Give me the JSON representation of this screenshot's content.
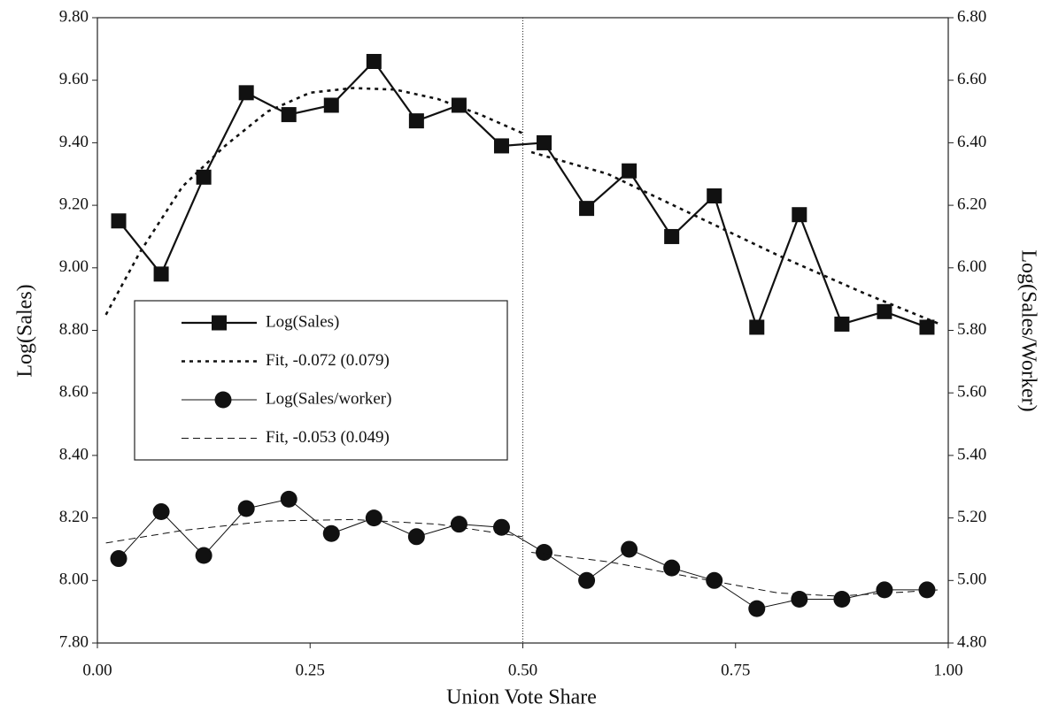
{
  "chart_data": {
    "type": "line",
    "x_label": "Union Vote Share",
    "y_label": "Log(Sales)",
    "y2_label": "Log(Sales/Worker)",
    "xlim": [
      0,
      1
    ],
    "ylim": [
      7.8,
      9.8
    ],
    "y2lim": [
      4.8,
      6.8
    ],
    "xticks": [
      {
        "value": 0,
        "label": "0.00"
      },
      {
        "value": 0.25,
        "label": "0.25"
      },
      {
        "value": 0.5,
        "label": "0.50"
      },
      {
        "value": 0.75,
        "label": "0.75"
      },
      {
        "value": 1,
        "label": "1.00"
      }
    ],
    "yticks": [
      {
        "value": 7.8,
        "label": "7.80"
      },
      {
        "value": 8,
        "label": "8.00"
      },
      {
        "value": 8.2,
        "label": "8.20"
      },
      {
        "value": 8.4,
        "label": "8.40"
      },
      {
        "value": 8.6,
        "label": "8.60"
      },
      {
        "value": 8.8,
        "label": "8.80"
      },
      {
        "value": 9,
        "label": "9.00"
      },
      {
        "value": 9.2,
        "label": "9.20"
      },
      {
        "value": 9.4,
        "label": "9.40"
      },
      {
        "value": 9.6,
        "label": "9.60"
      },
      {
        "value": 9.8,
        "label": "9.80"
      }
    ],
    "y2ticks": [
      {
        "value": 4.8,
        "label": "4.80"
      },
      {
        "value": 5,
        "label": "5.00"
      },
      {
        "value": 5.2,
        "label": "5.20"
      },
      {
        "value": 5.4,
        "label": "5.40"
      },
      {
        "value": 5.6,
        "label": "5.60"
      },
      {
        "value": 5.8,
        "label": "5.80"
      },
      {
        "value": 6,
        "label": "6.00"
      },
      {
        "value": 6.2,
        "label": "6.20"
      },
      {
        "value": 6.4,
        "label": "6.40"
      },
      {
        "value": 6.6,
        "label": "6.60"
      },
      {
        "value": 6.8,
        "label": "6.80"
      }
    ],
    "vline": 0.5,
    "series": [
      {
        "name": "Log(Sales)",
        "color": "#111111",
        "marker": "square",
        "width": 2.2,
        "dash": "none",
        "x": [
          0.025,
          0.075,
          0.125,
          0.175,
          0.225,
          0.275,
          0.325,
          0.375,
          0.425,
          0.475,
          0.525,
          0.575,
          0.625,
          0.675,
          0.725,
          0.775,
          0.825,
          0.875,
          0.925,
          0.975
        ],
        "values": [
          9.15,
          8.98,
          9.29,
          9.56,
          9.49,
          9.52,
          9.66,
          9.47,
          9.52,
          9.39,
          9.4,
          9.19,
          9.31,
          9.1,
          9.23,
          8.81,
          9.17,
          8.82,
          8.86,
          8.81
        ]
      },
      {
        "name": "Fit, -0.072 (0.079)",
        "color": "#111111",
        "marker": "none",
        "width": 2.6,
        "dash": "4 5",
        "x": [
          0.01,
          0.05,
          0.1,
          0.15,
          0.2,
          0.25,
          0.3,
          0.35,
          0.4,
          0.45,
          0.5,
          null,
          0.51,
          0.6,
          0.7,
          0.8,
          0.9,
          0.99
        ],
        "values": [
          8.85,
          9.05,
          9.26,
          9.39,
          9.5,
          9.56,
          9.575,
          9.57,
          9.54,
          9.49,
          9.43,
          null,
          9.37,
          9.3,
          9.17,
          9.04,
          8.92,
          8.82
        ]
      },
      {
        "name": "Log(Sales/worker)",
        "color": "#111111",
        "marker": "circle",
        "width": 1,
        "dash": "none",
        "axis": "y2",
        "x": [
          0.025,
          0.075,
          0.125,
          0.175,
          0.225,
          0.275,
          0.325,
          0.375,
          0.425,
          0.475,
          0.525,
          0.575,
          0.625,
          0.675,
          0.725,
          0.775,
          0.825,
          0.875,
          0.925,
          0.975
        ],
        "values": [
          5.07,
          5.22,
          5.08,
          5.23,
          5.26,
          5.15,
          5.2,
          5.14,
          5.18,
          5.17,
          5.09,
          5,
          5.1,
          5.04,
          5,
          4.91,
          4.94,
          4.94,
          4.97,
          4.97
        ]
      },
      {
        "name": "Fit, -0.053 (0.049)",
        "color": "#111111",
        "marker": "none",
        "width": 1,
        "dash": "8 5",
        "axis": "y2",
        "x": [
          0.01,
          0.1,
          0.2,
          0.3,
          0.4,
          0.5,
          null,
          0.51,
          0.6,
          0.7,
          0.8,
          0.87,
          0.99
        ],
        "values": [
          5.12,
          5.16,
          5.19,
          5.195,
          5.18,
          5.14,
          null,
          5.09,
          5.06,
          5.01,
          4.96,
          4.95,
          4.97
        ]
      }
    ]
  }
}
